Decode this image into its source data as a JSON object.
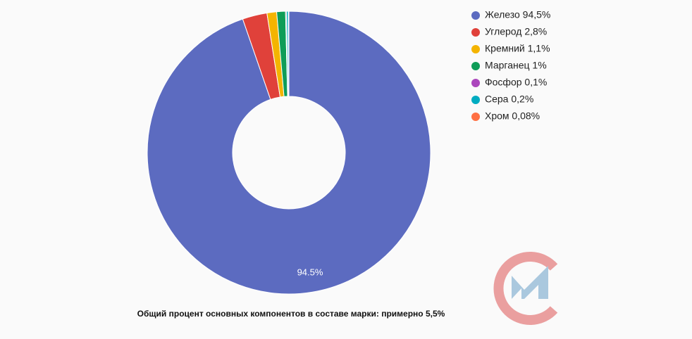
{
  "chart_data": {
    "type": "donut",
    "categories": [
      "Железо 94,5%",
      "Углерод 2,8%",
      "Кремний 1,1%",
      "Марганец 1%",
      "Фосфор 0,1%",
      "Сера 0,2%",
      "Хром 0,08%"
    ],
    "values": [
      94.5,
      2.8,
      1.1,
      1,
      0.1,
      0.2,
      0.08
    ],
    "value_labels": [
      "94.5%",
      null,
      null,
      null,
      null,
      null,
      null
    ],
    "colors": [
      "#5c6bc0",
      "#e0413a",
      "#f4b400",
      "#0f9d58",
      "#ab47bc",
      "#00acc1",
      "#ff7043"
    ],
    "legend": "right",
    "caption": "Общий процент основных компонентов в составе марки: примерно 5,5%"
  }
}
